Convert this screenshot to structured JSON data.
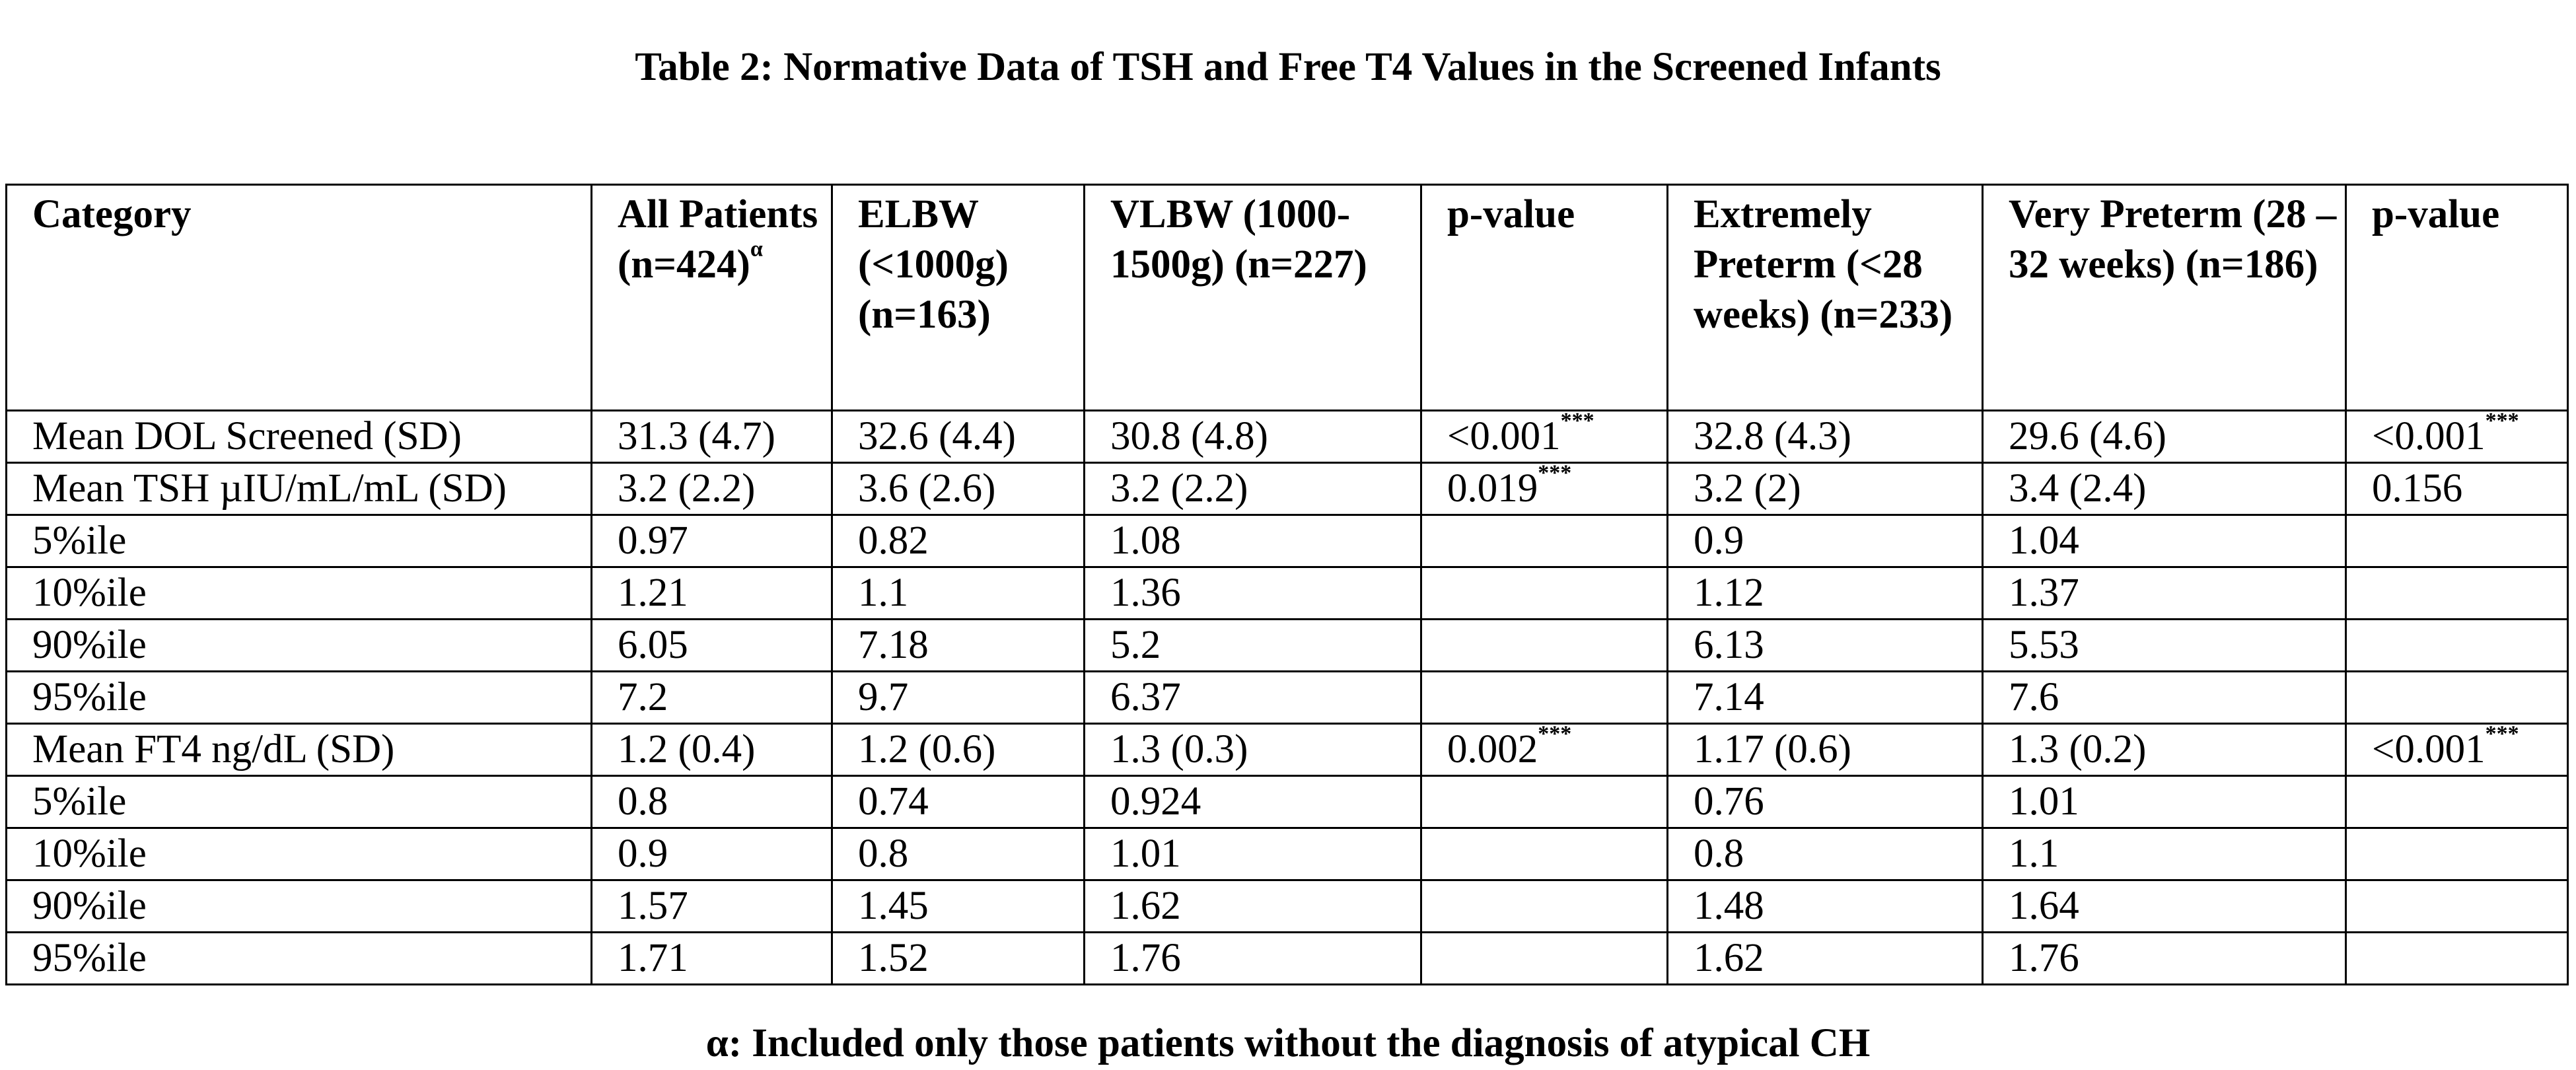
{
  "title": "Table 2:  Normative Data of TSH and Free T4 Values in the Screened Infants",
  "table": {
    "headers": [
      {
        "label": "Category",
        "sup": ""
      },
      {
        "label": "All Patients (n=424)",
        "sup": "α"
      },
      {
        "label": "ELBW (<1000g) (n=163)",
        "sup": ""
      },
      {
        "label": "VLBW (1000-1500g) (n=227)",
        "sup": ""
      },
      {
        "label": "p-value",
        "sup": ""
      },
      {
        "label": "Extremely Preterm (<28 weeks) (n=233)",
        "sup": ""
      },
      {
        "label": "Very Preterm (28 – 32 weeks) (n=186)",
        "sup": ""
      },
      {
        "label": "p-value",
        "sup": ""
      }
    ],
    "sections": [
      {
        "rows": [
          {
            "cells": [
              "Mean DOL Screened (SD)",
              "31.3 (4.7)",
              "32.6 (4.4)",
              "30.8 (4.8)",
              "<0.001",
              "32.8 (4.3)",
              "29.6 (4.6)",
              "<0.001"
            ],
            "sups": [
              "",
              "",
              "",
              "",
              "***",
              "",
              "",
              "***"
            ]
          }
        ]
      },
      {
        "rows": [
          {
            "cells": [
              "Mean TSH µIU/mL/mL (SD)",
              "3.2 (2.2)",
              "3.6 (2.6)",
              "3.2 (2.2)",
              "0.019",
              "3.2 (2)",
              "3.4 (2.4)",
              "0.156"
            ],
            "sups": [
              "",
              "",
              "",
              "",
              "***",
              "",
              "",
              ""
            ]
          },
          {
            "cells": [
              "5%ile",
              "0.97",
              "0.82",
              "1.08",
              "",
              "0.9",
              "1.04",
              ""
            ],
            "sups": [
              "",
              "",
              "",
              "",
              "",
              "",
              "",
              ""
            ]
          },
          {
            "cells": [
              "10%ile",
              "1.21",
              "1.1",
              "1.36",
              "",
              "1.12",
              "1.37",
              ""
            ],
            "sups": [
              "",
              "",
              "",
              "",
              "",
              "",
              "",
              ""
            ]
          },
          {
            "cells": [
              "90%ile",
              "6.05",
              "7.18",
              "5.2",
              "",
              "6.13",
              "5.53",
              ""
            ],
            "sups": [
              "",
              "",
              "",
              "",
              "",
              "",
              "",
              ""
            ]
          },
          {
            "cells": [
              "95%ile",
              "7.2",
              "9.7",
              "6.37",
              "",
              "7.14",
              "7.6",
              ""
            ],
            "sups": [
              "",
              "",
              "",
              "",
              "",
              "",
              "",
              ""
            ]
          }
        ]
      },
      {
        "rows": [
          {
            "cells": [
              "Mean FT4 ng/dL (SD)",
              "1.2 (0.4)",
              "1.2 (0.6)",
              "1.3 (0.3)",
              "0.002",
              "1.17 (0.6)",
              "1.3 (0.2)",
              "<0.001"
            ],
            "sups": [
              "",
              "",
              "",
              "",
              "***",
              "",
              "",
              "***"
            ]
          },
          {
            "cells": [
              "5%ile",
              "0.8",
              "0.74",
              "0.924",
              "",
              "0.76",
              "1.01",
              ""
            ],
            "sups": [
              "",
              "",
              "",
              "",
              "",
              "",
              "",
              ""
            ]
          },
          {
            "cells": [
              "10%ile",
              "0.9",
              "0.8",
              "1.01",
              "",
              "0.8",
              "1.1",
              ""
            ],
            "sups": [
              "",
              "",
              "",
              "",
              "",
              "",
              "",
              ""
            ]
          },
          {
            "cells": [
              "90%ile",
              "1.57",
              "1.45",
              "1.62",
              "",
              "1.48",
              "1.64",
              ""
            ],
            "sups": [
              "",
              "",
              "",
              "",
              "",
              "",
              "",
              ""
            ]
          },
          {
            "cells": [
              "95%ile",
              "1.71",
              "1.52",
              "1.76",
              "",
              "1.62",
              "1.76",
              ""
            ],
            "sups": [
              "",
              "",
              "",
              "",
              "",
              "",
              "",
              ""
            ]
          }
        ]
      }
    ]
  },
  "footnote": "α: Included only those patients without the diagnosis of atypical CH"
}
